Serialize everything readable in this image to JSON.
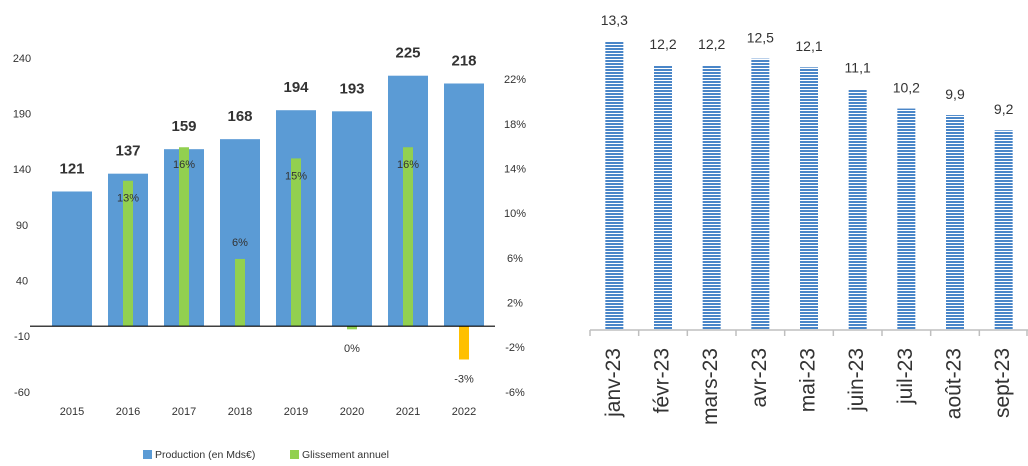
{
  "chart_data": [
    {
      "type": "bar",
      "categories": [
        "2015",
        "2016",
        "2017",
        "2018",
        "2019",
        "2020",
        "2021",
        "2022"
      ],
      "series": [
        {
          "name": "Production (en Mds€)",
          "color": "#5b9bd5",
          "axis": "y",
          "values": [
            121,
            137,
            159,
            168,
            194,
            193,
            225,
            218
          ]
        },
        {
          "name": "Glissement annuel",
          "color": "#92d050",
          "axis": "y2",
          "colors": [
            null,
            "#92d050",
            "#92d050",
            "#92d050",
            "#92d050",
            "#92d050",
            "#92d050",
            "#ffc000"
          ],
          "values": [
            null,
            13,
            16,
            6,
            15,
            -0.3,
            16,
            -3
          ],
          "value_labels": [
            null,
            "13%",
            "16%",
            "6%",
            "15%",
            "0%",
            "16%",
            "-3%"
          ]
        }
      ],
      "ylim": [
        -60,
        240
      ],
      "yticks": [
        -60,
        -10,
        40,
        90,
        140,
        190,
        240
      ],
      "y2lim": [
        -6,
        23.9
      ],
      "y2ticks": [
        {
          "value": -6,
          "label": "-6%"
        },
        {
          "value": -2,
          "label": "-2%"
        },
        {
          "value": 2,
          "label": "2%"
        },
        {
          "value": 6,
          "label": "6%"
        },
        {
          "value": 10,
          "label": "10%"
        },
        {
          "value": 14,
          "label": "14%"
        },
        {
          "value": 18,
          "label": "18%"
        },
        {
          "value": 22,
          "label": "22%"
        }
      ],
      "legend": "bottom"
    },
    {
      "type": "bar",
      "categories": [
        "janv-23",
        "févr-23",
        "mars-23",
        "avr-23",
        "mai-23",
        "juin-23",
        "juil-23",
        "août-23",
        "sept-23"
      ],
      "values": [
        13.3,
        12.2,
        12.2,
        12.5,
        12.1,
        11.1,
        10.2,
        9.9,
        9.2
      ],
      "value_labels": [
        "13,3",
        "12,2",
        "12,2",
        "12,5",
        "12,1",
        "11,1",
        "10,2",
        "9,9",
        "9,2"
      ],
      "color": "#4a86c8",
      "pattern": "horizontal-stripes",
      "ylim": [
        0,
        15.2
      ]
    }
  ]
}
